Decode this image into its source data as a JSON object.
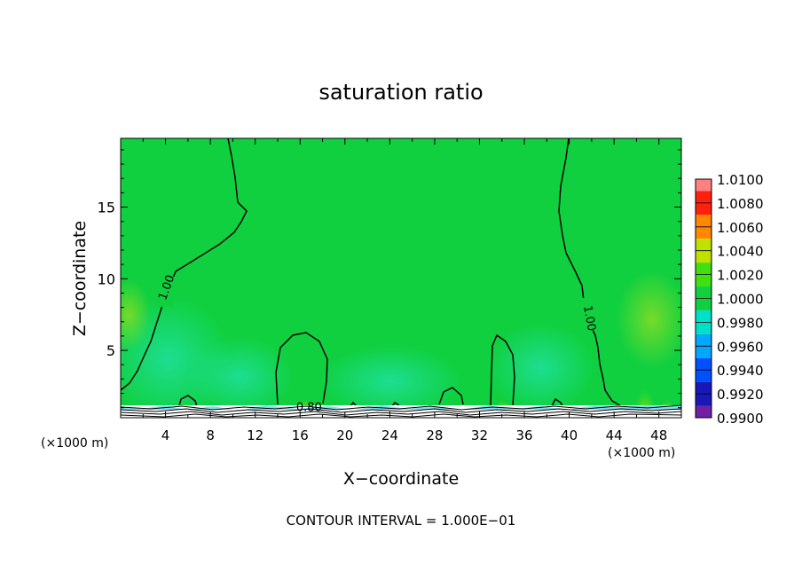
{
  "chart_data": {
    "type": "heatmap",
    "title": "saturation ratio",
    "xlabel": "X−coordinate",
    "ylabel": "Z−coordinate",
    "x_unit_left": "(×1000 m)",
    "x_unit_right": "(×1000 m)",
    "footer": "CONTOUR INTERVAL = 1.000E−01",
    "xlim": [
      0,
      50
    ],
    "ylim": [
      0.3,
      19.8
    ],
    "xticks": [
      4,
      8,
      12,
      16,
      20,
      24,
      28,
      32,
      36,
      40,
      44,
      48
    ],
    "yticks": [
      5,
      10,
      15
    ],
    "grid": false,
    "colorbar": {
      "levels": [
        "0.9900",
        "0.9920",
        "0.9940",
        "0.9960",
        "0.9980",
        "1.0000",
        "1.0020",
        "1.0040",
        "1.0060",
        "1.0080",
        "1.0100"
      ],
      "colors": [
        "#7020a0",
        "#1818b8",
        "#0050ff",
        "#00a8ff",
        "#00e0c8",
        "#10d040",
        "#40e010",
        "#c0e000",
        "#ff8800",
        "#ff2010",
        "#ff8080"
      ]
    },
    "contour_labels": [
      {
        "text": "1.00",
        "x": 4.4,
        "z": 9.3
      },
      {
        "text": "1.00",
        "x": 41.5,
        "z": 7.2
      },
      {
        "text": "0.80",
        "x": 16.8,
        "z": 0.75
      }
    ]
  },
  "colors": {
    "background": "#10d040",
    "moist_zone": "#28e07c",
    "outline": "#000000"
  }
}
